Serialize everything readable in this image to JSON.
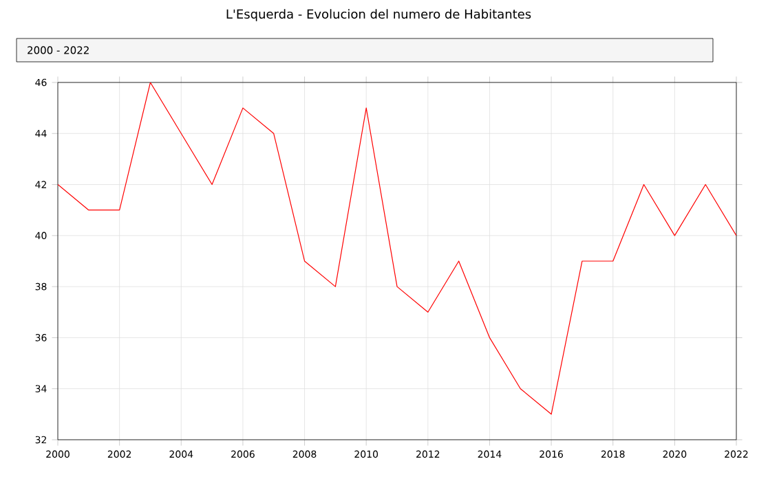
{
  "chart_data": {
    "type": "line",
    "title": "L'Esquerda - Evolucion del numero de Habitantes",
    "subtitle": "2000 - 2022",
    "x": [
      2000,
      2001,
      2002,
      2003,
      2004,
      2005,
      2006,
      2007,
      2008,
      2009,
      2010,
      2011,
      2012,
      2013,
      2014,
      2015,
      2016,
      2017,
      2018,
      2019,
      2020,
      2021,
      2022
    ],
    "series": [
      {
        "color": "#ff0000",
        "values": [
          42,
          41,
          41,
          46,
          44,
          42,
          45,
          44,
          39,
          38,
          45,
          38,
          37,
          39,
          36,
          34,
          33,
          39,
          39,
          42,
          40,
          42,
          40
        ]
      }
    ],
    "xlim": [
      2000,
      2022
    ],
    "ylim": [
      32,
      46
    ],
    "xticks": [
      2000,
      2002,
      2004,
      2006,
      2008,
      2010,
      2012,
      2014,
      2016,
      2018,
      2020,
      2022
    ],
    "yticks": [
      32,
      34,
      36,
      38,
      40,
      42,
      44,
      46
    ],
    "grid": true,
    "marker": "none",
    "line_style": "solid"
  }
}
